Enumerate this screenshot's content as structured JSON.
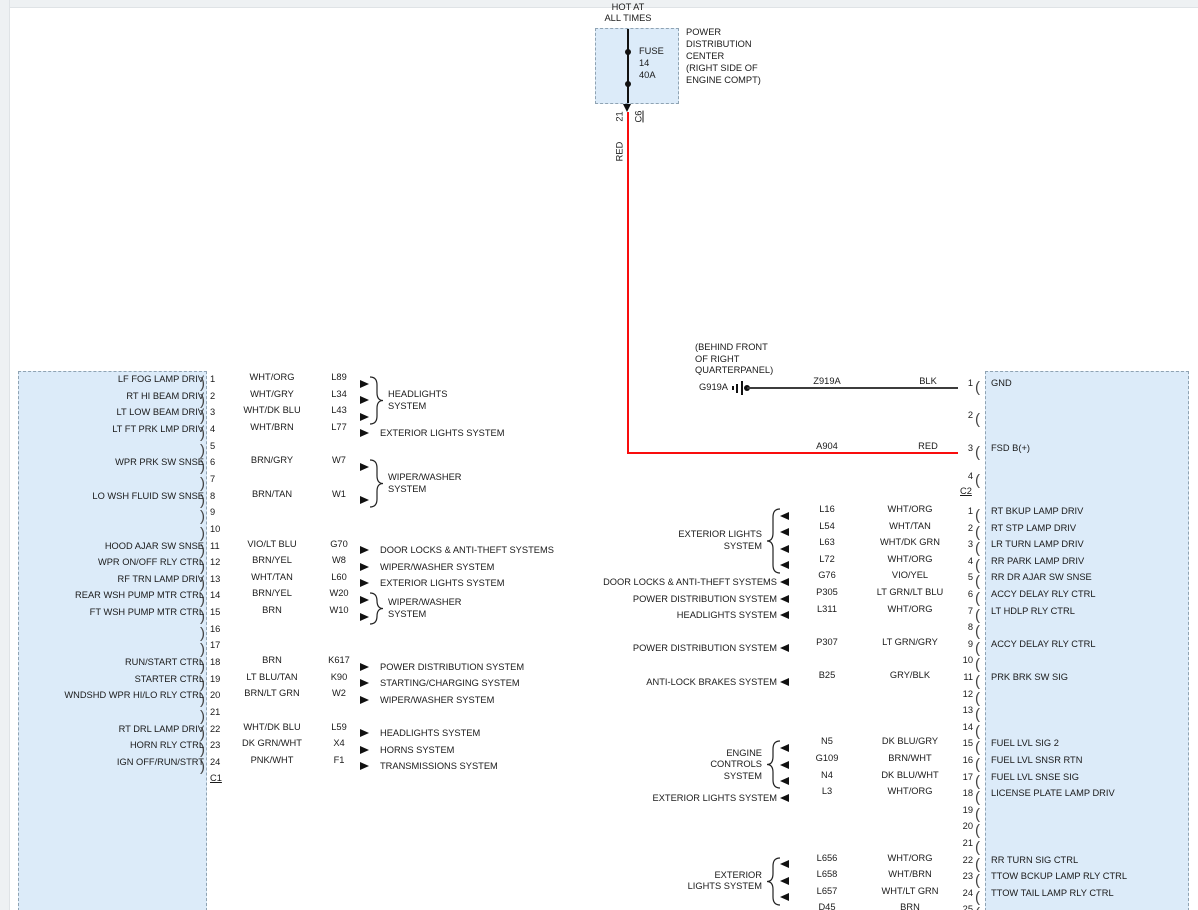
{
  "palette": {
    "box_fill": "#dcebf9",
    "box_border": "#8fa3b3",
    "line": "#111111",
    "text": "#1a1a1a",
    "power_red": "#f90d0d"
  },
  "wire_colors": {
    "WHT/ORG": "#f0d5a4",
    "WHT/GRY": "#d9d9d9",
    "WHT/DK BLU": "#bcc7e8",
    "WHT/BRN": "#dbc49e",
    "BRN/GRY": "#9d8468",
    "BRN/TAN": "#ad8d5a",
    "VIO/LT BLU": "#7fb2e8",
    "BRN/YEL": "#a38d3c",
    "WHT/TAN": "#e3cfa4",
    "BRN": "#9a6a33",
    "LT BLU/TAN": "#4fc3dd",
    "BRN/LT GRN": "#8f8a45",
    "DK GRN/WHT": "#3f9e57",
    "PNK/WHT": "#f07fc4",
    "BLK": "#3c3c3c",
    "RED": "#f90d0d",
    "WHT/DK GRN": "#a9c9a9",
    "VIO/YEL": "#b45cc8",
    "LT GRN/LT BLU": "#8fe39a",
    "LT GRN/GRY": "#7fe37f",
    "GRY/BLK": "#9a9a9a",
    "DK BLU/GRY": "#2d4fae",
    "BRN/WHT": "#a87c50",
    "DK BLU/WHT": "#3a5fc0",
    "WHT/LT GRN": "#bfe8b4"
  },
  "fuse": {
    "hot": "HOT AT\nALL TIMES",
    "name": "FUSE",
    "amp_number": "14",
    "rating": "40A",
    "location": "POWER\nDISTRIBUTION\nCENTER\n(RIGHT SIDE OF\nENGINE COMPT)",
    "pin": "21",
    "connector": "C6",
    "wire_color_label": "RED"
  },
  "ground": {
    "note": "(BEHIND FRONT\nOF RIGHT\nQUARTERPANEL)",
    "name": "G919A"
  },
  "left_connector": {
    "connector_label": "C1",
    "pins": [
      {
        "num": "1",
        "label": "LF FOG LAMP DRIV",
        "color": "WHT/ORG",
        "circuit": "L89"
      },
      {
        "num": "2",
        "label": "RT HI BEAM DRIV",
        "color": "WHT/GRY",
        "circuit": "L34"
      },
      {
        "num": "3",
        "label": "LT LOW BEAM DRIV",
        "color": "WHT/DK BLU",
        "circuit": "L43"
      },
      {
        "num": "4",
        "label": "LT FT PRK LMP DRIV",
        "color": "WHT/BRN",
        "circuit": "L77"
      },
      {
        "num": "5"
      },
      {
        "num": "6",
        "label": "WPR PRK SW SNSE",
        "color": "BRN/GRY",
        "circuit": "W7"
      },
      {
        "num": "7"
      },
      {
        "num": "8",
        "label": "LO WSH FLUID SW SNSE",
        "color": "BRN/TAN",
        "circuit": "W1"
      },
      {
        "num": "9"
      },
      {
        "num": "10"
      },
      {
        "num": "11",
        "label": "HOOD AJAR SW SNSE",
        "color": "VIO/LT BLU",
        "circuit": "G70"
      },
      {
        "num": "12",
        "label": "WPR ON/OFF RLY CTRL",
        "color": "BRN/YEL",
        "circuit": "W8"
      },
      {
        "num": "13",
        "label": "RF TRN LAMP DRIV",
        "color": "WHT/TAN",
        "circuit": "L60"
      },
      {
        "num": "14",
        "label": "REAR WSH PUMP MTR CTRL",
        "color": "BRN/YEL",
        "circuit": "W20"
      },
      {
        "num": "15",
        "label": "FT WSH PUMP MTR CTRL",
        "color": "BRN",
        "circuit": "W10"
      },
      {
        "num": "16"
      },
      {
        "num": "17"
      },
      {
        "num": "18",
        "label": "RUN/START CTRL",
        "color": "BRN",
        "circuit": "K617"
      },
      {
        "num": "19",
        "label": "STARTER CTRL",
        "color": "LT BLU/TAN",
        "circuit": "K90"
      },
      {
        "num": "20",
        "label": "WNDSHD WPR HI/LO RLY CTRL",
        "color": "BRN/LT GRN",
        "circuit": "W2"
      },
      {
        "num": "21"
      },
      {
        "num": "22",
        "label": "RT DRL LAMP DRIV",
        "color": "WHT/DK BLU",
        "circuit": "L59"
      },
      {
        "num": "23",
        "label": "HORN RLY CTRL",
        "color": "DK GRN/WHT",
        "circuit": "X4"
      },
      {
        "num": "24",
        "label": "IGN OFF/RUN/STRT",
        "color": "PNK/WHT",
        "circuit": "F1"
      }
    ],
    "destinations": [
      {
        "pins": [
          1,
          2,
          3
        ],
        "label": "HEADLIGHTS\nSYSTEM"
      },
      {
        "pins": [
          4
        ],
        "label": "EXTERIOR LIGHTS SYSTEM"
      },
      {
        "pins": [
          6,
          8
        ],
        "label": "WIPER/WASHER\nSYSTEM"
      },
      {
        "pins": [
          11
        ],
        "label": "DOOR LOCKS & ANTI-THEFT SYSTEMS"
      },
      {
        "pins": [
          12
        ],
        "label": "WIPER/WASHER SYSTEM"
      },
      {
        "pins": [
          13
        ],
        "label": "EXTERIOR LIGHTS SYSTEM"
      },
      {
        "pins": [
          14,
          15
        ],
        "label": "WIPER/WASHER\nSYSTEM"
      },
      {
        "pins": [
          18
        ],
        "label": "POWER DISTRIBUTION SYSTEM"
      },
      {
        "pins": [
          19
        ],
        "label": "STARTING/CHARGING SYSTEM"
      },
      {
        "pins": [
          20
        ],
        "label": "WIPER/WASHER SYSTEM"
      },
      {
        "pins": [
          22
        ],
        "label": "HEADLIGHTS SYSTEM"
      },
      {
        "pins": [
          23
        ],
        "label": "HORNS SYSTEM"
      },
      {
        "pins": [
          24
        ],
        "label": "TRANSMISSIONS SYSTEM"
      }
    ]
  },
  "right_connector": {
    "connector_top": {
      "connector_label": "C2",
      "pins": [
        {
          "num": "1",
          "label": "GND",
          "circuit": "Z919A",
          "color": "BLK"
        },
        {
          "num": "2"
        },
        {
          "num": "3",
          "label": "FSD B(+)",
          "circuit": "A904",
          "color": "RED"
        },
        {
          "num": "4"
        }
      ]
    },
    "connector_bottom": {
      "pins": [
        {
          "num": "1",
          "circuit": "L16",
          "color": "WHT/ORG",
          "label": "RT BKUP LAMP DRIV"
        },
        {
          "num": "2",
          "circuit": "L54",
          "color": "WHT/TAN",
          "label": "RT STP LAMP DRIV"
        },
        {
          "num": "3",
          "circuit": "L63",
          "color": "WHT/DK GRN",
          "label": "LR TURN LAMP DRIV"
        },
        {
          "num": "4",
          "circuit": "L72",
          "color": "WHT/ORG",
          "label": "RR PARK LAMP DRIV"
        },
        {
          "num": "5",
          "circuit": "G76",
          "color": "VIO/YEL",
          "label": "RR DR AJAR SW SNSE"
        },
        {
          "num": "6",
          "circuit": "P305",
          "color": "LT GRN/LT BLU",
          "label": "ACCY DELAY RLY CTRL"
        },
        {
          "num": "7",
          "circuit": "L311",
          "color": "WHT/ORG",
          "label": "LT HDLP RLY CTRL"
        },
        {
          "num": "8"
        },
        {
          "num": "9",
          "circuit": "P307",
          "color": "LT GRN/GRY",
          "label": "ACCY DELAY RLY CTRL"
        },
        {
          "num": "10"
        },
        {
          "num": "11",
          "circuit": "B25",
          "color": "GRY/BLK",
          "label": "PRK BRK SW SIG"
        },
        {
          "num": "12"
        },
        {
          "num": "13"
        },
        {
          "num": "14"
        },
        {
          "num": "15",
          "circuit": "N5",
          "color": "DK BLU/GRY",
          "label": "FUEL LVL SIG 2"
        },
        {
          "num": "16",
          "circuit": "G109",
          "color": "BRN/WHT",
          "label": "FUEL LVL SNSR RTN"
        },
        {
          "num": "17",
          "circuit": "N4",
          "color": "DK BLU/WHT",
          "label": "FUEL LVL SNSE SIG"
        },
        {
          "num": "18",
          "circuit": "L3",
          "color": "WHT/ORG",
          "label": "LICENSE PLATE LAMP DRIV"
        },
        {
          "num": "19"
        },
        {
          "num": "20"
        },
        {
          "num": "21"
        },
        {
          "num": "22",
          "circuit": "L656",
          "color": "WHT/ORG",
          "label": "RR TURN SIG CTRL"
        },
        {
          "num": "23",
          "circuit": "L658",
          "color": "WHT/BRN",
          "label": "TTOW BCKUP LAMP RLY CTRL"
        },
        {
          "num": "24",
          "circuit": "L657",
          "color": "WHT/LT GRN",
          "label": "TTOW TAIL LAMP RLY CTRL"
        },
        {
          "num": "25",
          "circuit": "D45",
          "color": "BRN",
          "label": ""
        }
      ],
      "sources": [
        {
          "pins": [
            1,
            2,
            3,
            4
          ],
          "label": "EXTERIOR LIGHTS\nSYSTEM"
        },
        {
          "pins": [
            5
          ],
          "label": "DOOR LOCKS & ANTI-THEFT SYSTEMS"
        },
        {
          "pins": [
            6
          ],
          "label": "POWER DISTRIBUTION SYSTEM"
        },
        {
          "pins": [
            7
          ],
          "label": "HEADLIGHTS SYSTEM"
        },
        {
          "pins": [
            9
          ],
          "label": "POWER DISTRIBUTION SYSTEM"
        },
        {
          "pins": [
            11
          ],
          "label": "ANTI-LOCK BRAKES SYSTEM"
        },
        {
          "pins": [
            15,
            16,
            17
          ],
          "label": "ENGINE\nCONTROLS\nSYSTEM"
        },
        {
          "pins": [
            18
          ],
          "label": "EXTERIOR LIGHTS SYSTEM"
        },
        {
          "pins": [
            22,
            23,
            24
          ],
          "label": "EXTERIOR\nLIGHTS SYSTEM"
        }
      ]
    }
  }
}
